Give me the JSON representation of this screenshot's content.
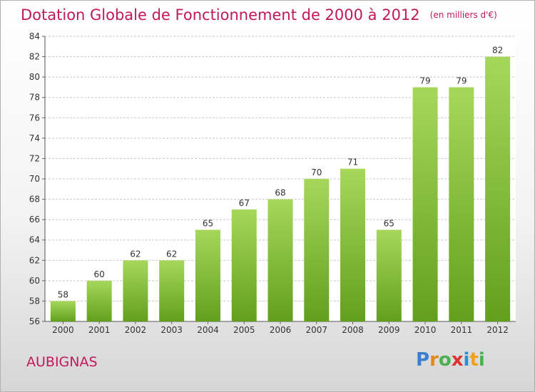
{
  "title": "Dotation Globale de Fonctionnement de 2000 à 2012",
  "unit": "(en milliers d'€)",
  "place": "AUBIGNAS",
  "logo": {
    "text": "Proxiti",
    "letters": [
      "P",
      "r",
      "o",
      "x",
      "i",
      "t",
      "i"
    ],
    "colors": [
      "#3a7fd0",
      "#e08a1e",
      "#4caf50",
      "#d33",
      "#2c8fd6",
      "#f0a020",
      "#4caf50"
    ]
  },
  "colors": {
    "title": "#c2185b",
    "bar_top": "#a6d75b",
    "bar_bottom": "#62a01c",
    "grid": "#c8c8c8",
    "text": "#333333"
  },
  "chart_data": {
    "type": "bar",
    "categories": [
      "2000",
      "2001",
      "2002",
      "2003",
      "2004",
      "2005",
      "2006",
      "2007",
      "2008",
      "2009",
      "2010",
      "2011",
      "2012"
    ],
    "values": [
      58,
      60,
      62,
      62,
      65,
      67,
      68,
      70,
      71,
      65,
      79,
      79,
      82
    ],
    "ylim": [
      56,
      84
    ],
    "yticks": [
      56,
      58,
      60,
      62,
      64,
      66,
      68,
      70,
      72,
      74,
      76,
      78,
      80,
      82,
      84
    ],
    "grid": true
  }
}
